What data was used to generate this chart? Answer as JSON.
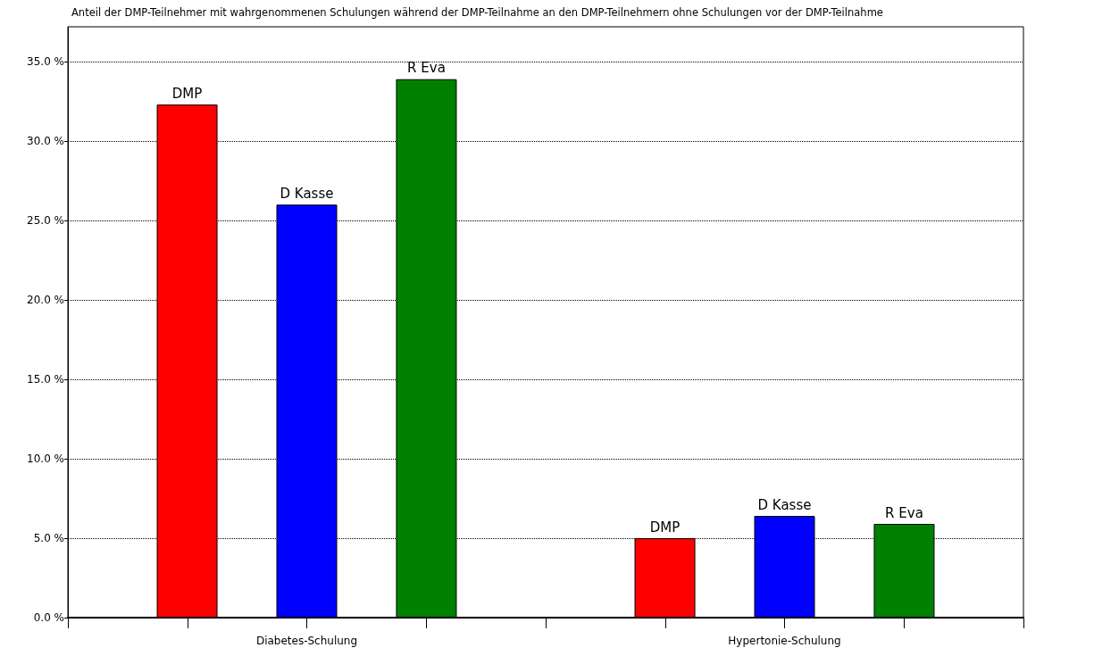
{
  "chart_data": {
    "type": "bar",
    "title": "Anteil der DMP-Teilnehmer mit wahrgenommenen Schulungen während der DMP-Teilnahme an den DMP-Teilnehmern ohne Schulungen vor der DMP-Teilnahme",
    "categories": [
      "Diabetes-Schulung",
      "Hypertonie-Schulung"
    ],
    "series": [
      {
        "name": "DMP",
        "color": "#ff0000",
        "values": [
          32.3,
          5.0
        ]
      },
      {
        "name": "D Kasse",
        "color": "#0000ff",
        "values": [
          26.0,
          6.4
        ]
      },
      {
        "name": "R Eva",
        "color": "#008000",
        "values": [
          33.9,
          5.9
        ]
      }
    ],
    "ylim": [
      0,
      37.2
    ],
    "yticks": [
      {
        "value": 0,
        "label": "0.0 %"
      },
      {
        "value": 5,
        "label": "5.0 %"
      },
      {
        "value": 10,
        "label": "10.0 %"
      },
      {
        "value": 15,
        "label": "15.0 %"
      },
      {
        "value": 20,
        "label": "20.0 %"
      },
      {
        "value": 25,
        "label": "25.0 %"
      },
      {
        "value": 30,
        "label": "30.0 %"
      },
      {
        "value": 35,
        "label": "35.0 %"
      }
    ],
    "grid": "y",
    "legend": false
  }
}
